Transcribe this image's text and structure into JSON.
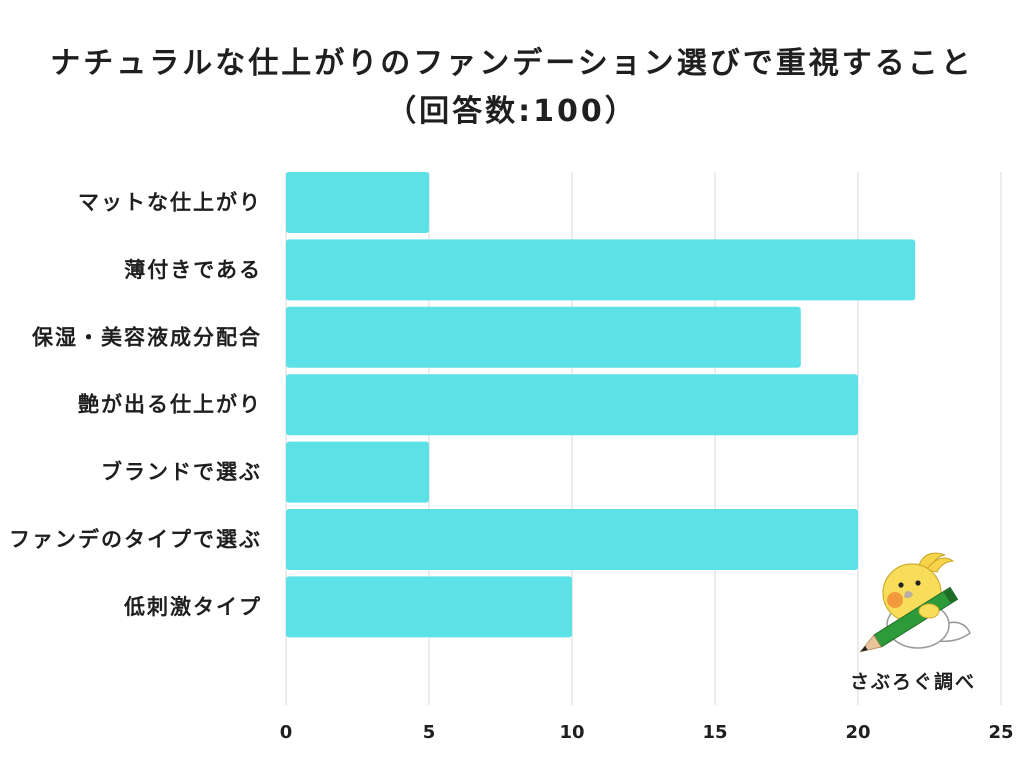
{
  "chart_data": {
    "type": "bar",
    "orientation": "horizontal",
    "title": "ナチュラルな仕上がりのファンデーション選びで重視すること",
    "subtitle": "（回答数:100）",
    "categories": [
      "マットな仕上がり",
      "薄付きである",
      "保湿・美容液成分配合",
      "艶が出る仕上がり",
      "ブランドで選ぶ",
      "ファンデのタイプで選ぶ",
      "低刺激タイプ"
    ],
    "values": [
      5,
      22,
      18,
      20,
      5,
      20,
      10
    ],
    "xlim": [
      0,
      25
    ],
    "x_ticks": [
      0,
      5,
      10,
      15,
      20,
      25
    ],
    "grid": true,
    "legend": "none",
    "bar_color": "#5CE1E6"
  },
  "credit": {
    "text": "さぶろぐ調べ",
    "mascot_icon": "bird-with-pencil-icon"
  },
  "colors": {
    "background": "#FFFFFF",
    "text": "#1F1F1F",
    "grid": "#D9D9D9"
  }
}
